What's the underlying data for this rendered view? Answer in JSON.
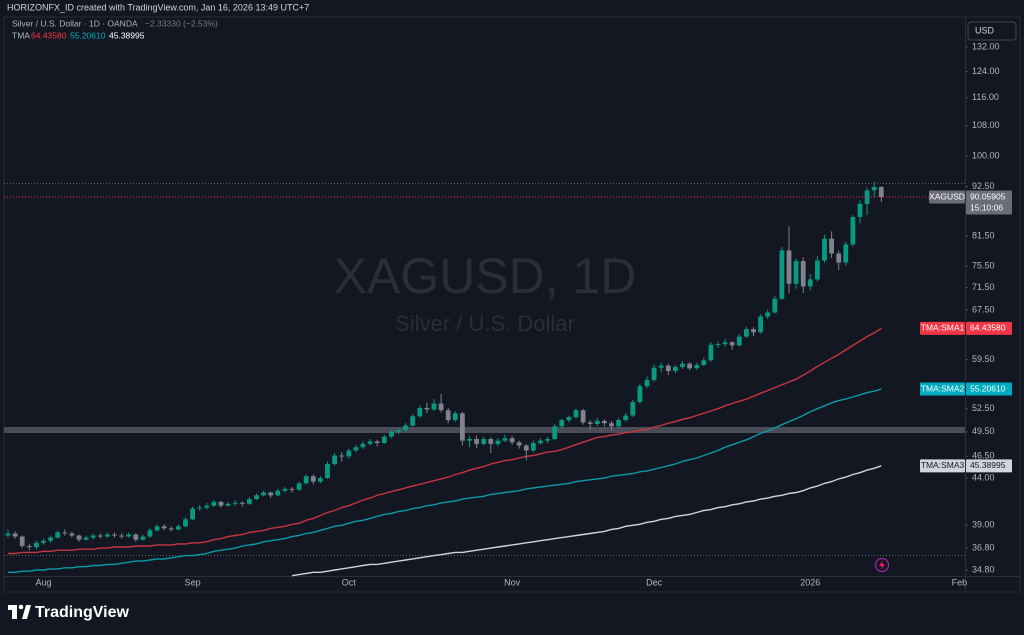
{
  "header": {
    "author_line": "HORIZONFX_ID created with TradingView.com, Jan 16, 2026 13:49 UTC+7"
  },
  "chart_data": {
    "type": "candlestick",
    "symbol": "XAGUSD",
    "interval_line": "Silver / U.S. Dollar · 1D · OANDA",
    "change": "−2.33330 (−2.53%)",
    "watermark": "XAGUSD, 1D",
    "watermark_sub": "Silver / U.S. Dollar",
    "currency": "USD",
    "countdown": "15:10:06",
    "indicator": "TMA",
    "log_scale": true,
    "grid": false,
    "up_color": "#089981",
    "down_color": "#80838d",
    "price_line_color": "#f23645",
    "price_tag_color": "#6a6d78",
    "ylim": [
      34.1,
      134.4
    ],
    "yticks": [
      {
        "value": 132,
        "label": "132.00"
      },
      {
        "value": 124,
        "label": "124.00"
      },
      {
        "value": 116,
        "label": "116.00"
      },
      {
        "value": 108,
        "label": "108.00"
      },
      {
        "value": 100,
        "label": "100.00"
      },
      {
        "value": 92.5,
        "label": "92.50"
      },
      {
        "value": 81.5,
        "label": "81.50"
      },
      {
        "value": 75.5,
        "label": "75.50"
      },
      {
        "value": 71.5,
        "label": "71.50"
      },
      {
        "value": 67.5,
        "label": "67.50"
      },
      {
        "value": 59.5,
        "label": "59.50"
      },
      {
        "value": 52.5,
        "label": "52.50"
      },
      {
        "value": 49.5,
        "label": "49.50"
      },
      {
        "value": 46.5,
        "label": "46.50"
      },
      {
        "value": 44,
        "label": "44.00"
      },
      {
        "value": 39,
        "label": "39.00"
      },
      {
        "value": 36.8,
        "label": "36.80"
      },
      {
        "value": 34.8,
        "label": "34.80"
      }
    ],
    "categories": [
      null,
      null,
      null,
      null,
      null,
      "Aug",
      null,
      null,
      null,
      null,
      null,
      null,
      null,
      null,
      null,
      null,
      null,
      null,
      null,
      null,
      null,
      null,
      null,
      null,
      null,
      null,
      "Sep",
      null,
      null,
      null,
      null,
      null,
      null,
      null,
      null,
      null,
      null,
      null,
      null,
      null,
      null,
      null,
      null,
      null,
      null,
      null,
      null,
      null,
      "Oct",
      null,
      null,
      null,
      null,
      null,
      null,
      null,
      null,
      null,
      null,
      null,
      null,
      null,
      null,
      null,
      null,
      null,
      null,
      null,
      null,
      null,
      null,
      "Nov",
      null,
      null,
      null,
      null,
      null,
      null,
      null,
      null,
      null,
      null,
      null,
      null,
      null,
      null,
      null,
      null,
      null,
      null,
      null,
      "Dec",
      null,
      null,
      null,
      null,
      null,
      null,
      null,
      null,
      null,
      null,
      null,
      null,
      null,
      null,
      null,
      null,
      null,
      null,
      null,
      null,
      null,
      "2026",
      null,
      null,
      null,
      null,
      null,
      null,
      null,
      null,
      null,
      null,
      null,
      null,
      null,
      null,
      null,
      null,
      null,
      null,
      null,
      null,
      "Feb"
    ],
    "open": [
      38.0,
      38.2,
      37.9,
      37.0,
      36.9,
      37.3,
      37.5,
      37.8,
      38.3,
      38.2,
      38.0,
      37.6,
      37.8,
      38.0,
      37.9,
      38.1,
      38.0,
      37.9,
      38.1,
      37.6,
      37.9,
      38.5,
      38.9,
      38.7,
      38.6,
      38.9,
      39.6,
      40.7,
      40.8,
      41.0,
      41.4,
      41.0,
      41.2,
      41.3,
      41.2,
      41.7,
      42.1,
      42.4,
      42.1,
      42.6,
      42.8,
      42.7,
      43.4,
      44.2,
      43.6,
      44.0,
      45.6,
      46.6,
      46.5,
      47.2,
      47.6,
      48.0,
      48.3,
      48.1,
      48.9,
      49.5,
      49.7,
      50.3,
      51.5,
      52.6,
      52.4,
      53.2,
      52.3,
      51.0,
      51.9,
      48.4,
      48.6,
      48.0,
      48.6,
      48.0,
      48.4,
      48.7,
      48.2,
      47.8,
      47.2,
      48.1,
      48.4,
      48.6,
      50.2,
      51.0,
      51.4,
      52.3,
      50.7,
      50.5,
      50.9,
      50.6,
      50.2,
      51.0,
      51.6,
      53.4,
      55.6,
      56.5,
      58.3,
      58.6,
      57.8,
      58.4,
      58.9,
      58.2,
      58.7,
      59.4,
      61.8,
      61.9,
      62.2,
      61.7,
      63.1,
      64.3,
      63.8,
      66.4,
      67.1,
      69.5,
      78.6,
      72.2,
      76.5,
      71.7,
      73.0,
      76.6,
      81.0,
      78.0,
      76.2,
      79.8,
      85.6,
      88.5,
      91.6,
      92.39,
      null,
      null,
      null,
      null,
      null,
      null,
      null,
      null,
      null,
      null,
      null
    ],
    "high": [
      38.6,
      38.4,
      38.0,
      37.2,
      37.5,
      37.7,
      38.0,
      38.5,
      38.6,
      38.4,
      38.1,
      38.0,
      38.2,
      38.2,
      38.3,
      38.3,
      38.2,
      38.3,
      38.2,
      38.1,
      38.7,
      39.1,
      39.1,
      38.9,
      39.1,
      39.8,
      40.9,
      41.1,
      41.3,
      41.6,
      41.5,
      41.4,
      41.6,
      41.5,
      41.9,
      42.3,
      42.6,
      42.5,
      42.8,
      43.0,
      43.0,
      43.6,
      44.4,
      44.4,
      44.2,
      45.9,
      46.9,
      47.0,
      47.4,
      47.9,
      48.3,
      48.6,
      48.5,
      49.1,
      49.8,
      50.0,
      50.6,
      51.8,
      53.0,
      53.3,
      53.8,
      54.5,
      52.6,
      52.2,
      52.1,
      49.0,
      49.0,
      48.9,
      48.8,
      48.7,
      49.1,
      49.0,
      48.4,
      48.0,
      48.4,
      48.7,
      48.9,
      50.5,
      51.2,
      51.6,
      52.5,
      52.5,
      51.0,
      51.3,
      51.1,
      50.9,
      51.3,
      51.9,
      53.7,
      56.0,
      57.0,
      58.8,
      59.0,
      58.9,
      58.7,
      59.3,
      59.1,
      59.0,
      59.8,
      62.2,
      62.3,
      62.7,
      62.4,
      63.5,
      64.7,
      64.6,
      66.8,
      67.6,
      70.0,
      79.3,
      83.6,
      77.0,
      77.2,
      74.0,
      77.5,
      81.8,
      82.5,
      78.6,
      80.4,
      86.0,
      89.3,
      92.3,
      93.6,
      92.6,
      null,
      null,
      null,
      null,
      null,
      null,
      null,
      null,
      null,
      null,
      null
    ],
    "low": [
      37.8,
      37.7,
      36.8,
      36.6,
      36.7,
      37.1,
      37.3,
      37.7,
      38.0,
      37.8,
      37.4,
      37.5,
      37.6,
      37.7,
      37.8,
      37.8,
      37.7,
      37.8,
      37.4,
      37.5,
      37.8,
      38.4,
      38.5,
      38.4,
      38.5,
      38.8,
      39.5,
      40.5,
      40.6,
      40.9,
      40.8,
      40.9,
      41.0,
      40.9,
      41.1,
      41.6,
      42.0,
      41.8,
      42.0,
      42.4,
      42.4,
      42.6,
      43.3,
      43.3,
      43.4,
      43.9,
      45.4,
      45.9,
      46.2,
      47.0,
      47.4,
      47.8,
      47.7,
      48.0,
      48.7,
      49.2,
      49.5,
      50.2,
      51.3,
      51.9,
      52.2,
      52.0,
      50.6,
      50.8,
      47.8,
      47.6,
      47.5,
      47.8,
      46.9,
      47.7,
      48.2,
      47.9,
      47.4,
      46.0,
      47.0,
      47.9,
      48.1,
      48.5,
      49.9,
      50.7,
      51.2,
      50.4,
      49.8,
      50.2,
      50.2,
      49.7,
      50.0,
      50.8,
      51.4,
      53.2,
      55.3,
      56.2,
      57.6,
      57.2,
      57.5,
      58.1,
      57.9,
      58.0,
      58.5,
      59.2,
      61.3,
      61.5,
      61.0,
      61.5,
      62.9,
      63.2,
      63.6,
      66.0,
      66.9,
      69.3,
      70.5,
      71.3,
      70.5,
      71.0,
      72.6,
      76.2,
      77.1,
      74.8,
      75.6,
      79.4,
      84.2,
      86.0,
      89.9,
      88.9,
      null,
      null,
      null,
      null,
      null,
      null,
      null,
      null,
      null,
      null,
      null
    ],
    "close": [
      38.2,
      37.9,
      37.0,
      36.9,
      37.3,
      37.5,
      37.8,
      38.3,
      38.2,
      38.0,
      37.6,
      37.8,
      38.0,
      37.9,
      38.1,
      38.0,
      37.9,
      38.1,
      37.6,
      37.9,
      38.5,
      38.9,
      38.7,
      38.6,
      38.9,
      39.6,
      40.7,
      40.8,
      41.0,
      41.4,
      41.0,
      41.2,
      41.3,
      41.2,
      41.7,
      42.1,
      42.4,
      42.1,
      42.6,
      42.8,
      42.7,
      43.4,
      44.2,
      43.6,
      44.0,
      45.6,
      46.6,
      46.5,
      47.2,
      47.6,
      48.0,
      48.3,
      48.1,
      48.9,
      49.5,
      49.7,
      50.3,
      51.5,
      52.6,
      52.4,
      53.2,
      52.3,
      51.0,
      51.9,
      48.4,
      48.6,
      48.0,
      48.6,
      48.0,
      48.4,
      48.7,
      48.2,
      47.8,
      47.2,
      48.1,
      48.4,
      48.6,
      50.2,
      51.0,
      51.4,
      52.3,
      50.7,
      50.5,
      50.9,
      50.6,
      50.2,
      51.0,
      51.6,
      53.4,
      55.6,
      56.5,
      58.3,
      58.6,
      57.8,
      58.4,
      58.9,
      58.2,
      58.7,
      59.4,
      61.8,
      61.9,
      62.2,
      61.7,
      63.1,
      64.3,
      63.8,
      66.4,
      67.1,
      69.5,
      78.6,
      72.2,
      76.5,
      71.7,
      73.0,
      76.6,
      81.0,
      78.0,
      76.2,
      79.8,
      85.6,
      88.5,
      91.6,
      92.39,
      90.05905,
      null,
      null,
      null,
      null,
      null,
      null,
      null,
      null,
      null,
      null,
      null
    ],
    "series": [
      {
        "name": "TMA:SMA1",
        "color": "#c73542",
        "last_label": "64.43580",
        "values": [
          36.3,
          36.3,
          36.4,
          36.4,
          36.4,
          36.5,
          36.5,
          36.6,
          36.6,
          36.6,
          36.7,
          36.7,
          36.7,
          36.8,
          36.8,
          36.9,
          36.9,
          36.9,
          37.0,
          37.0,
          37.0,
          37.1,
          37.1,
          37.1,
          37.2,
          37.2,
          37.3,
          37.3,
          37.4,
          37.6,
          37.7,
          37.9,
          38.0,
          38.1,
          38.3,
          38.4,
          38.5,
          38.7,
          38.8,
          38.9,
          39.1,
          39.2,
          39.5,
          39.7,
          40.0,
          40.3,
          40.5,
          40.8,
          41.0,
          41.3,
          41.6,
          41.8,
          42.1,
          42.3,
          42.5,
          42.7,
          42.9,
          43.1,
          43.3,
          43.5,
          43.7,
          43.9,
          44.1,
          44.4,
          44.6,
          44.9,
          45.1,
          45.3,
          45.6,
          45.8,
          46.0,
          46.1,
          46.3,
          46.5,
          46.6,
          46.8,
          47.0,
          47.1,
          47.3,
          47.6,
          47.9,
          48.2,
          48.5,
          48.8,
          48.9,
          49.1,
          49.2,
          49.4,
          49.5,
          49.7,
          49.8,
          50.1,
          50.3,
          50.6,
          50.8,
          51.1,
          51.3,
          51.6,
          51.9,
          52.2,
          52.5,
          52.9,
          53.2,
          53.5,
          53.8,
          54.2,
          54.6,
          55.0,
          55.4,
          55.8,
          56.2,
          56.6,
          57.2,
          57.8,
          58.5,
          59.1,
          59.7,
          60.3,
          61.0,
          61.7,
          62.4,
          63.1,
          63.7,
          64.4358,
          null,
          null,
          null,
          null,
          null,
          null,
          null,
          null,
          null,
          null,
          null
        ]
      },
      {
        "name": "TMA:SMA2",
        "color": "#0d9aa8",
        "last_label": "55.20610",
        "values": [
          34.6,
          34.6,
          34.7,
          34.7,
          34.8,
          34.8,
          34.9,
          34.9,
          35.0,
          35.0,
          35.1,
          35.1,
          35.2,
          35.2,
          35.3,
          35.3,
          35.4,
          35.5,
          35.6,
          35.6,
          35.7,
          35.8,
          35.8,
          35.9,
          36.0,
          36.1,
          36.1,
          36.2,
          36.3,
          36.5,
          36.6,
          36.7,
          36.8,
          37.0,
          37.1,
          37.2,
          37.4,
          37.5,
          37.6,
          37.7,
          37.9,
          38.0,
          38.2,
          38.3,
          38.5,
          38.7,
          38.9,
          39.0,
          39.2,
          39.4,
          39.5,
          39.7,
          39.9,
          40.1,
          40.2,
          40.4,
          40.5,
          40.7,
          40.8,
          41.0,
          41.1,
          41.3,
          41.4,
          41.5,
          41.7,
          41.8,
          41.9,
          42.0,
          42.2,
          42.3,
          42.4,
          42.5,
          42.6,
          42.8,
          42.9,
          43.0,
          43.1,
          43.2,
          43.3,
          43.4,
          43.6,
          43.7,
          43.8,
          43.9,
          44.0,
          44.2,
          44.3,
          44.4,
          44.5,
          44.7,
          44.8,
          45.0,
          45.2,
          45.4,
          45.6,
          45.9,
          46.1,
          46.3,
          46.6,
          46.9,
          47.2,
          47.6,
          47.9,
          48.2,
          48.5,
          48.9,
          49.3,
          49.6,
          50.0,
          50.4,
          50.8,
          51.2,
          51.6,
          52.1,
          52.5,
          52.9,
          53.3,
          53.6,
          53.8,
          54.1,
          54.4,
          54.7,
          54.9,
          55.2061,
          null,
          null,
          null,
          null,
          null,
          null,
          null,
          null,
          null,
          null,
          null
        ]
      },
      {
        "name": "TMA:SMA3",
        "color": "#d1d4dc",
        "last_label": "45.38995",
        "values": [
          null,
          null,
          null,
          null,
          null,
          null,
          null,
          null,
          null,
          null,
          null,
          null,
          null,
          null,
          null,
          null,
          null,
          null,
          null,
          null,
          null,
          null,
          null,
          null,
          null,
          null,
          null,
          null,
          null,
          null,
          null,
          null,
          null,
          null,
          null,
          null,
          null,
          null,
          null,
          null,
          34.3,
          34.4,
          34.5,
          34.6,
          34.6,
          34.7,
          34.8,
          34.9,
          35.0,
          35.1,
          35.2,
          35.3,
          35.3,
          35.4,
          35.5,
          35.6,
          35.7,
          35.8,
          35.9,
          36.0,
          36.1,
          36.2,
          36.3,
          36.4,
          36.4,
          36.5,
          36.6,
          36.7,
          36.8,
          36.9,
          37.0,
          37.1,
          37.2,
          37.3,
          37.4,
          37.5,
          37.6,
          37.7,
          37.8,
          37.9,
          38.0,
          38.1,
          38.2,
          38.3,
          38.4,
          38.6,
          38.7,
          38.9,
          39.0,
          39.1,
          39.3,
          39.4,
          39.6,
          39.7,
          39.9,
          40.0,
          40.1,
          40.3,
          40.5,
          40.6,
          40.8,
          40.9,
          41.1,
          41.2,
          41.4,
          41.5,
          41.7,
          41.8,
          42.0,
          42.1,
          42.3,
          42.4,
          42.6,
          42.9,
          43.1,
          43.4,
          43.6,
          43.9,
          44.1,
          44.4,
          44.6,
          44.9,
          45.1,
          45.38995,
          null,
          null,
          null,
          null,
          null,
          null,
          null,
          null,
          null,
          null,
          null
        ]
      }
    ]
  },
  "footer": {
    "brand": "TradingView"
  }
}
